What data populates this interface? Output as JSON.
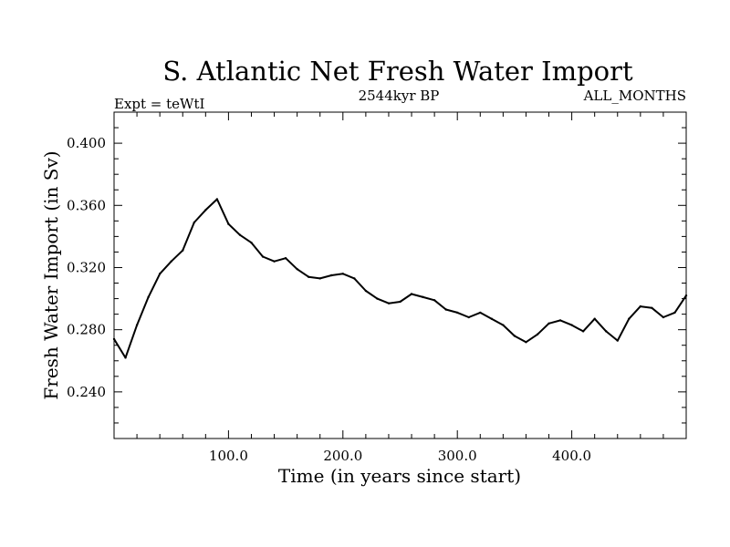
{
  "chart_data": {
    "type": "line",
    "title": "S. Atlantic Net Fresh Water Import",
    "subtitle_left": "Expt = teWtI",
    "subtitle_center": "2544kyr BP",
    "subtitle_right": "ALL_MONTHS",
    "xlabel": "Time (in years since start)",
    "ylabel": "Fresh Water Import (in Sv)",
    "xlim": [
      0,
      500
    ],
    "ylim": [
      0.21,
      0.42
    ],
    "xticks": [
      100,
      200,
      300,
      400
    ],
    "xtick_labels": [
      "100.0",
      "200.0",
      "300.0",
      "400.0"
    ],
    "yticks": [
      0.24,
      0.28,
      0.32,
      0.36,
      0.4
    ],
    "ytick_labels": [
      "0.240",
      "0.280",
      "0.320",
      "0.360",
      "0.400"
    ],
    "series": [
      {
        "name": "Fresh Water Import",
        "color": "#000000",
        "x": [
          0,
          10,
          20,
          30,
          40,
          50,
          60,
          70,
          80,
          90,
          100,
          110,
          120,
          130,
          140,
          150,
          160,
          170,
          180,
          190,
          200,
          210,
          220,
          230,
          240,
          250,
          260,
          270,
          280,
          290,
          300,
          310,
          320,
          330,
          340,
          350,
          360,
          370,
          380,
          390,
          400,
          410,
          420,
          430,
          440,
          450,
          460,
          470,
          480,
          490,
          500
        ],
        "values": [
          0.274,
          0.262,
          0.283,
          0.301,
          0.316,
          0.324,
          0.331,
          0.349,
          0.357,
          0.364,
          0.348,
          0.341,
          0.336,
          0.327,
          0.324,
          0.326,
          0.319,
          0.314,
          0.313,
          0.315,
          0.316,
          0.313,
          0.305,
          0.3,
          0.297,
          0.298,
          0.303,
          0.301,
          0.299,
          0.293,
          0.291,
          0.288,
          0.291,
          0.287,
          0.283,
          0.276,
          0.272,
          0.277,
          0.284,
          0.286,
          0.283,
          0.279,
          0.287,
          0.279,
          0.273,
          0.287,
          0.295,
          0.294,
          0.288,
          0.291,
          0.302
        ]
      }
    ]
  }
}
